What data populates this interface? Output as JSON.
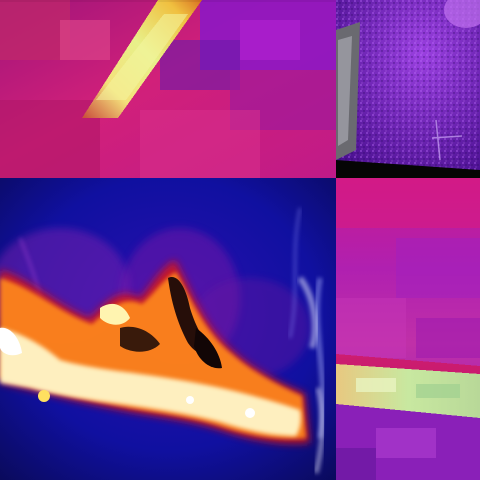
{
  "figure": {
    "kind": "false-color thermal imagery mosaic",
    "panels": [
      {
        "id": "tile-tl",
        "name": "thermal-closeup-top-left",
        "palette": "inferno"
      },
      {
        "id": "tile-tr",
        "name": "thermal-texture-top-right",
        "palette": "violet"
      },
      {
        "id": "tile-bl",
        "name": "thermal-lava-flow-bottom-left",
        "palette": "ironbow"
      },
      {
        "id": "tile-br",
        "name": "thermal-closeup-bottom-right",
        "palette": "inferno"
      }
    ]
  },
  "colors": {
    "background": "#000000",
    "magenta": "#d1207a",
    "purple": "#8a18c8",
    "violet": "#6a1aa8",
    "deep_blue": "#0b0fa8",
    "navy": "#0a0a5a",
    "yellow": "#f4f07a",
    "pale_green": "#c8e8a0",
    "white": "#ffffff",
    "orange": "#ff8a1a",
    "red": "#d81818"
  }
}
